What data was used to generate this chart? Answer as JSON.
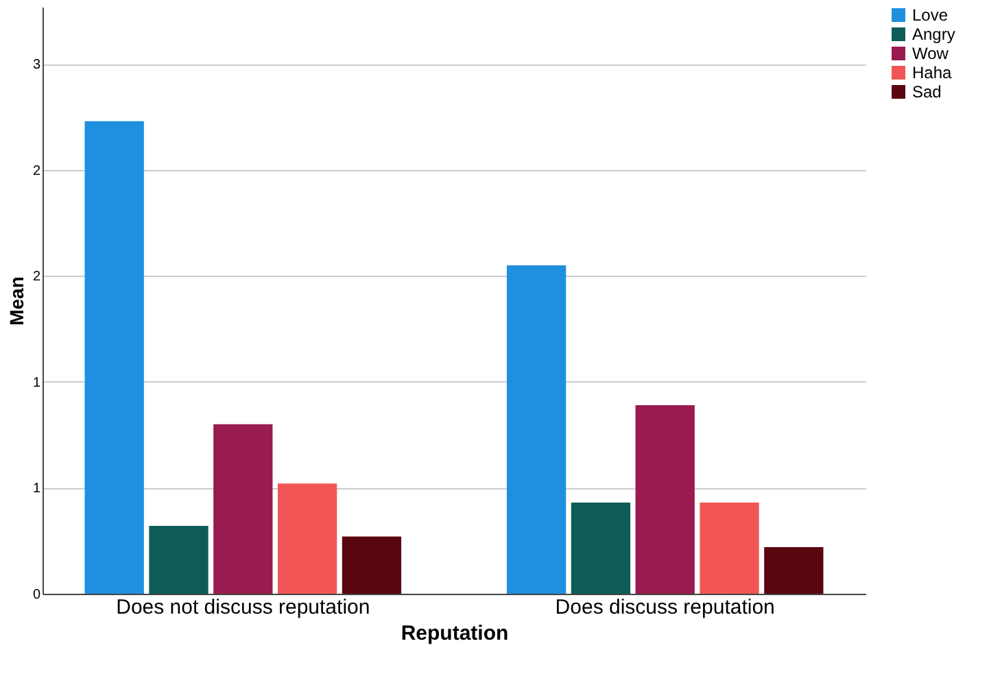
{
  "chart_data": {
    "type": "bar",
    "xlabel": "Reputation",
    "ylabel": "Mean",
    "categories": [
      "Does not discuss reputation",
      "Does discuss reputation"
    ],
    "series": [
      {
        "name": "Love",
        "color": "#1f8fe0",
        "values": [
          2.23,
          1.55
        ]
      },
      {
        "name": "Angry",
        "color": "#0d5c57",
        "values": [
          0.32,
          0.43
        ]
      },
      {
        "name": "Wow",
        "color": "#9a1b4f",
        "values": [
          0.8,
          0.89
        ]
      },
      {
        "name": "Haha",
        "color": "#f25555",
        "values": [
          0.52,
          0.43
        ]
      },
      {
        "name": "Sad",
        "color": "#5a0610",
        "values": [
          0.27,
          0.22
        ]
      }
    ],
    "ylim": [
      0,
      2.77
    ],
    "yticks": [
      0,
      {
        "value": 0.5,
        "label": "1"
      },
      1,
      {
        "value": 1.5,
        "label": "2"
      },
      2,
      {
        "value": 2.5,
        "label": "3"
      }
    ],
    "grid": "y",
    "legend": "top right"
  }
}
